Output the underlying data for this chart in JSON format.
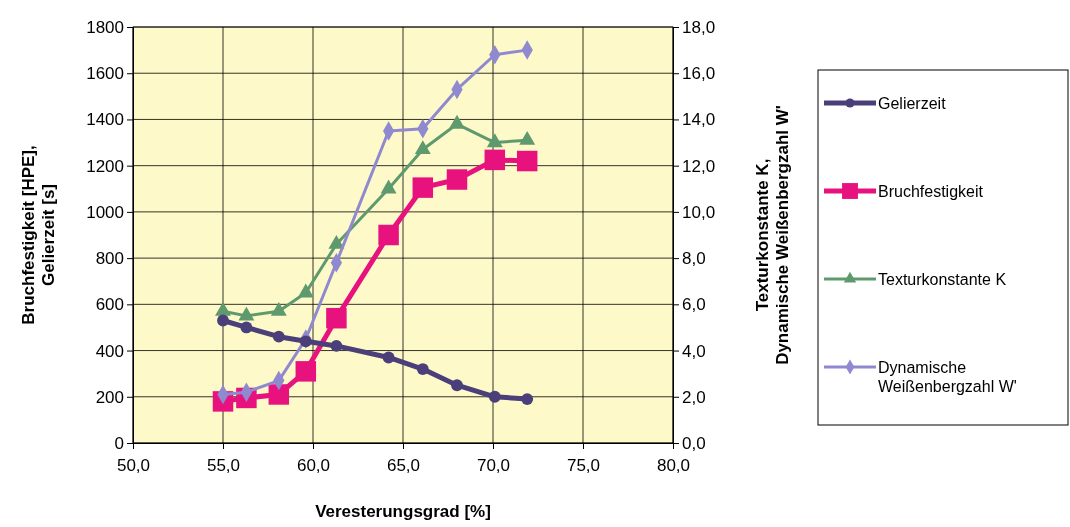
{
  "chart_data": {
    "type": "line",
    "xlabel": "Veresterungsgrad [%]",
    "ylabel": "Bruchfestigkeit [HPE], Gelierzeit [s]",
    "y2label": "Texturkonstante K, Dynamische Weißenbergzahl W'",
    "x": [
      55.0,
      56.3,
      58.1,
      59.6,
      61.3,
      64.2,
      66.1,
      68.0,
      70.1,
      71.9
    ],
    "xlim": [
      50,
      80
    ],
    "xticks": [
      {
        "value": 50,
        "label": "50,0"
      },
      {
        "value": 55,
        "label": "55,0"
      },
      {
        "value": 60,
        "label": "60,0"
      },
      {
        "value": 65,
        "label": "65,0"
      },
      {
        "value": 70,
        "label": "70,0"
      },
      {
        "value": 75,
        "label": "75,0"
      },
      {
        "value": 80,
        "label": "80,0"
      }
    ],
    "ylim": [
      0,
      1800
    ],
    "yticks": [
      0,
      200,
      400,
      600,
      800,
      1000,
      1200,
      1400,
      1600,
      1800
    ],
    "y2lim": [
      0,
      18
    ],
    "y2ticks": [
      {
        "value": 0,
        "label": "0,0"
      },
      {
        "value": 2,
        "label": "2,0"
      },
      {
        "value": 4,
        "label": "4,0"
      },
      {
        "value": 6,
        "label": "6,0"
      },
      {
        "value": 8,
        "label": "8,0"
      },
      {
        "value": 10,
        "label": "10,0"
      },
      {
        "value": 12,
        "label": "12,0"
      },
      {
        "value": 14,
        "label": "14,0"
      },
      {
        "value": 16,
        "label": "16,0"
      },
      {
        "value": 18,
        "label": "18,0"
      }
    ],
    "grid": true,
    "legend": "right",
    "series": [
      {
        "name": "Gelierzeit",
        "color": "#4b3f7a",
        "marker": "circle",
        "values": [
          530,
          500,
          460,
          440,
          420,
          370,
          320,
          250,
          200,
          190
        ]
      },
      {
        "name": "Bruchfestigkeit",
        "color": "#e8127f",
        "marker": "square",
        "values": [
          180,
          195,
          210,
          310,
          540,
          900,
          1105,
          1140,
          1225,
          1220
        ]
      },
      {
        "name": "Texturkonstante K",
        "color": "#5e9a6e",
        "marker": "triangle",
        "axis": "y2",
        "values": [
          5.7,
          5.5,
          5.7,
          6.5,
          8.6,
          11.0,
          12.7,
          13.8,
          13.0,
          13.1
        ]
      },
      {
        "name": "Dynamische Weißenbergzahl W'",
        "color": "#8f89cf",
        "marker": "diamond",
        "axis": "y2",
        "values": [
          2.1,
          2.2,
          2.7,
          4.5,
          7.8,
          13.5,
          13.6,
          15.3,
          16.8,
          17.0
        ]
      }
    ]
  }
}
